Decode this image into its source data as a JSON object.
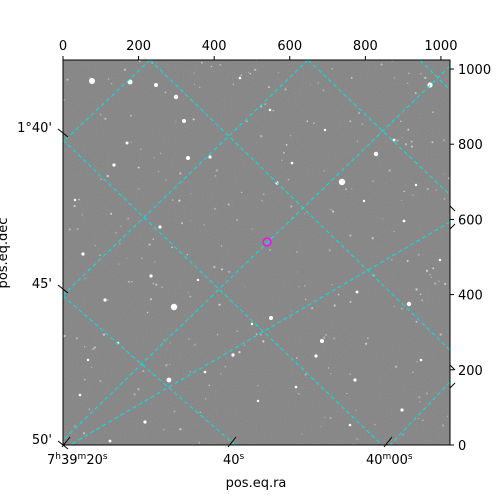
{
  "chart_data": {
    "type": "image",
    "title": "",
    "xlabel": "pos.eq.ra",
    "ylabel": "pos.eq.dec",
    "pixel_x": {
      "ticks": [
        0,
        200,
        400,
        600,
        800,
        1000
      ],
      "lim": [
        0,
        1024
      ]
    },
    "pixel_y": {
      "ticks": [
        0,
        200,
        400,
        600,
        800,
        1000
      ],
      "lim": [
        0,
        1024
      ]
    },
    "ra_ticks": [
      {
        "label_h": "7",
        "label_m": "39",
        "label_s": "20",
        "kind": "hms"
      },
      {
        "label_s": "40",
        "kind": "s"
      },
      {
        "label_m": "40",
        "label_s": "00",
        "kind": "ms"
      }
    ],
    "dec_ticks": [
      "1°40'",
      "45'",
      "50'"
    ],
    "grid": true,
    "grid_color": "#00e5e5",
    "image_style": "grayscale star field",
    "marker": {
      "pixel": [
        540,
        540
      ],
      "color": "#ff00ff",
      "shape": "circle"
    }
  }
}
